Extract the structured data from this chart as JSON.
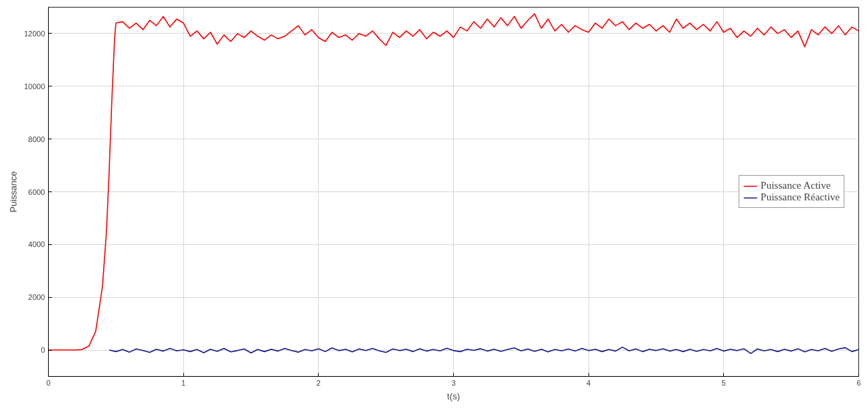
{
  "chart_data": {
    "type": "line",
    "xlabel": "t(s)",
    "ylabel": "Puissance",
    "xlim": [
      0,
      6
    ],
    "ylim": [
      -1000,
      13000
    ],
    "xticks": [
      0,
      1,
      2,
      3,
      4,
      5,
      6
    ],
    "yticks": [
      0,
      2000,
      4000,
      6000,
      8000,
      10000,
      12000
    ],
    "grid": true,
    "legend": "right",
    "line_style": "solid",
    "marker": "none",
    "series": [
      {
        "name": "Puissance Active",
        "color": "#ff0000",
        "x": [
          0,
          0.1,
          0.2,
          0.25,
          0.3,
          0.35,
          0.4,
          0.43,
          0.45,
          0.47,
          0.49,
          0.5,
          0.55,
          0.6,
          0.65,
          0.7,
          0.75,
          0.8,
          0.85,
          0.9,
          0.95,
          1.0,
          1.05,
          1.1,
          1.15,
          1.2,
          1.25,
          1.3,
          1.35,
          1.4,
          1.45,
          1.5,
          1.55,
          1.6,
          1.65,
          1.7,
          1.75,
          1.8,
          1.85,
          1.9,
          1.95,
          2.0,
          2.05,
          2.1,
          2.15,
          2.2,
          2.25,
          2.3,
          2.35,
          2.4,
          2.45,
          2.5,
          2.55,
          2.6,
          2.65,
          2.7,
          2.75,
          2.8,
          2.85,
          2.9,
          2.95,
          3.0,
          3.05,
          3.1,
          3.15,
          3.2,
          3.25,
          3.3,
          3.35,
          3.4,
          3.45,
          3.5,
          3.55,
          3.6,
          3.65,
          3.7,
          3.75,
          3.8,
          3.85,
          3.9,
          3.95,
          4.0,
          4.05,
          4.1,
          4.15,
          4.2,
          4.25,
          4.3,
          4.35,
          4.4,
          4.45,
          4.5,
          4.55,
          4.6,
          4.65,
          4.7,
          4.75,
          4.8,
          4.85,
          4.9,
          4.95,
          5.0,
          5.05,
          5.1,
          5.15,
          5.2,
          5.25,
          5.3,
          5.35,
          5.4,
          5.45,
          5.5,
          5.55,
          5.6,
          5.65,
          5.7,
          5.75,
          5.8,
          5.85,
          5.9,
          5.95,
          6.0
        ],
        "values": [
          0,
          0,
          0,
          20,
          150,
          700,
          2400,
          4500,
          6800,
          9500,
          11800,
          12400,
          12450,
          12200,
          12400,
          12150,
          12500,
          12300,
          12650,
          12250,
          12550,
          12400,
          11900,
          12100,
          11800,
          12050,
          11600,
          11950,
          11700,
          12000,
          11850,
          12100,
          11900,
          11750,
          11950,
          11800,
          11900,
          12100,
          12300,
          11950,
          12150,
          11850,
          11700,
          12050,
          11850,
          11950,
          11750,
          12000,
          11900,
          12100,
          11800,
          11550,
          12050,
          11850,
          12100,
          11900,
          12150,
          11800,
          12050,
          11900,
          12100,
          11850,
          12250,
          12100,
          12450,
          12200,
          12550,
          12250,
          12600,
          12300,
          12650,
          12200,
          12500,
          12750,
          12200,
          12550,
          12100,
          12350,
          12050,
          12300,
          12150,
          12050,
          12400,
          12200,
          12550,
          12300,
          12450,
          12150,
          12400,
          12200,
          12350,
          12100,
          12300,
          12050,
          12550,
          12200,
          12400,
          12150,
          12350,
          12100,
          12450,
          12050,
          12200,
          11850,
          12100,
          11900,
          12200,
          11950,
          12250,
          12000,
          12150,
          11850,
          12100,
          11500,
          12150,
          11950,
          12250,
          12000,
          12300,
          11950,
          12250,
          12100
        ]
      },
      {
        "name": "Puissance Réactive",
        "color": "#1a1a8c",
        "x": [
          0.45,
          0.5,
          0.55,
          0.6,
          0.65,
          0.7,
          0.75,
          0.8,
          0.85,
          0.9,
          0.95,
          1.0,
          1.05,
          1.1,
          1.15,
          1.2,
          1.25,
          1.3,
          1.35,
          1.4,
          1.45,
          1.5,
          1.55,
          1.6,
          1.65,
          1.7,
          1.75,
          1.8,
          1.85,
          1.9,
          1.95,
          2.0,
          2.05,
          2.1,
          2.15,
          2.2,
          2.25,
          2.3,
          2.35,
          2.4,
          2.45,
          2.5,
          2.55,
          2.6,
          2.65,
          2.7,
          2.75,
          2.8,
          2.85,
          2.9,
          2.95,
          3.0,
          3.05,
          3.1,
          3.15,
          3.2,
          3.25,
          3.3,
          3.35,
          3.4,
          3.45,
          3.5,
          3.55,
          3.6,
          3.65,
          3.7,
          3.75,
          3.8,
          3.85,
          3.9,
          3.95,
          4.0,
          4.05,
          4.1,
          4.15,
          4.2,
          4.25,
          4.3,
          4.35,
          4.4,
          4.45,
          4.5,
          4.55,
          4.6,
          4.65,
          4.7,
          4.75,
          4.8,
          4.85,
          4.9,
          4.95,
          5.0,
          5.05,
          5.1,
          5.15,
          5.2,
          5.25,
          5.3,
          5.35,
          5.4,
          5.45,
          5.5,
          5.55,
          5.6,
          5.65,
          5.7,
          5.75,
          5.8,
          5.85,
          5.9,
          5.95,
          6.0
        ],
        "values": [
          0,
          -60,
          20,
          -80,
          40,
          -20,
          -90,
          30,
          -40,
          60,
          -30,
          10,
          -60,
          20,
          -100,
          30,
          -50,
          60,
          -70,
          -20,
          40,
          -110,
          20,
          -60,
          30,
          -40,
          60,
          -20,
          -80,
          20,
          -30,
          50,
          -60,
          80,
          -20,
          30,
          -70,
          40,
          -20,
          60,
          -30,
          -90,
          40,
          -20,
          30,
          -60,
          50,
          -40,
          20,
          -30,
          70,
          -20,
          -60,
          30,
          -10,
          50,
          -40,
          30,
          -50,
          20,
          80,
          -30,
          40,
          -50,
          30,
          -70,
          20,
          -30,
          40,
          -40,
          60,
          -20,
          30,
          -60,
          20,
          -40,
          110,
          -30,
          40,
          -60,
          30,
          -20,
          50,
          -40,
          20,
          -60,
          30,
          -50,
          20,
          -30,
          60,
          -40,
          30,
          -20,
          50,
          -130,
          40,
          -30,
          20,
          -60,
          30,
          -40,
          50,
          -70,
          20,
          -30,
          60,
          -50,
          40,
          90,
          -60,
          20
        ]
      }
    ]
  }
}
